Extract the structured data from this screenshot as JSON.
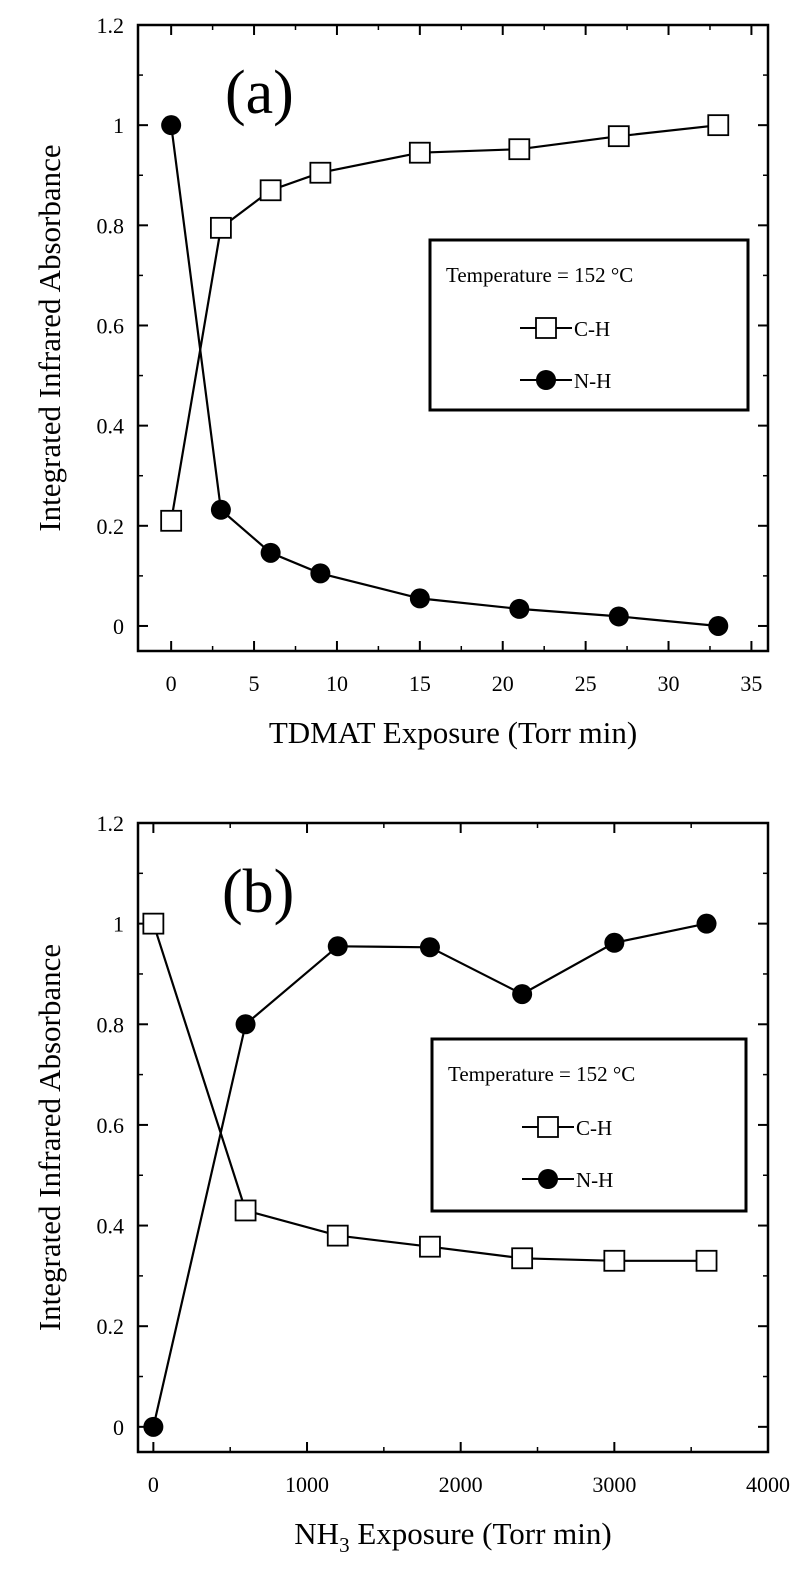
{
  "chart_data": [
    {
      "type": "line",
      "panel_label": "(a)",
      "xlabel": "TDMAT Exposure (Torr min)",
      "ylabel": "Integrated Infrared Absorbance",
      "xlim": [
        -2,
        36
      ],
      "ylim": [
        -0.05,
        1.2
      ],
      "xticks": [
        0,
        5,
        10,
        15,
        20,
        25,
        30,
        35
      ],
      "yticks": [
        0,
        0.2,
        0.4,
        0.6,
        0.8,
        1,
        1.2
      ],
      "xtick_labels": [
        "0",
        "5",
        "10",
        "15",
        "20",
        "25",
        "30",
        "35"
      ],
      "ytick_labels": [
        "0",
        "0.2",
        "0.4",
        "0.6",
        "0.8",
        "1",
        "1.2"
      ],
      "grid": false,
      "legend": {
        "placement": "right-center",
        "title": "Temperature = 152 °C"
      },
      "series": [
        {
          "name": "C-H",
          "marker": "open-square",
          "x": [
            0,
            3,
            6,
            9,
            15,
            21,
            27,
            33
          ],
          "y": [
            0.21,
            0.795,
            0.87,
            0.905,
            0.945,
            0.952,
            0.978,
            1.0
          ]
        },
        {
          "name": "N-H",
          "marker": "filled-circle",
          "x": [
            0,
            3,
            6,
            9,
            15,
            21,
            27,
            33
          ],
          "y": [
            1.0,
            0.232,
            0.146,
            0.105,
            0.055,
            0.034,
            0.019,
            0.0
          ]
        }
      ]
    },
    {
      "type": "line",
      "panel_label": "(b)",
      "xlabel": "NH3 Exposure (Torr min)",
      "xlabel_parts": {
        "base": "NH",
        "sub": "3",
        "rest": " Exposure (Torr min)"
      },
      "ylabel": "Integrated Infrared Absorbance",
      "xlim": [
        -100,
        4000
      ],
      "ylim": [
        -0.05,
        1.2
      ],
      "xticks": [
        0,
        1000,
        2000,
        3000,
        4000
      ],
      "yticks": [
        0,
        0.2,
        0.4,
        0.6,
        0.8,
        1,
        1.2
      ],
      "xtick_labels": [
        "0",
        "1000",
        "2000",
        "3000",
        "4000"
      ],
      "ytick_labels": [
        "0",
        "0.2",
        "0.4",
        "0.6",
        "0.8",
        "1",
        "1.2"
      ],
      "grid": false,
      "legend": {
        "placement": "right-center",
        "title": "Temperature = 152 °C"
      },
      "series": [
        {
          "name": "C-H",
          "marker": "open-square",
          "x": [
            0,
            600,
            1200,
            1800,
            2400,
            3000,
            3600
          ],
          "y": [
            1.0,
            0.43,
            0.38,
            0.358,
            0.335,
            0.33,
            0.33
          ]
        },
        {
          "name": "N-H",
          "marker": "filled-circle",
          "x": [
            0,
            600,
            1200,
            1800,
            2400,
            3000,
            3600
          ],
          "y": [
            0.0,
            0.8,
            0.955,
            0.953,
            0.86,
            0.962,
            1.0
          ]
        }
      ]
    }
  ]
}
